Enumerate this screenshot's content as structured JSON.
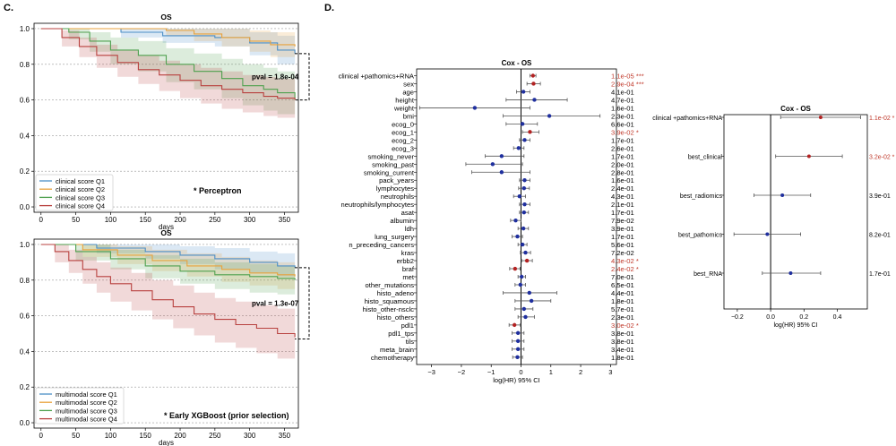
{
  "panel_labels": {
    "c": "C.",
    "d": "D."
  },
  "colors": {
    "q1": "#4b8ec6",
    "q2": "#e8a23c",
    "q3": "#4fa14f",
    "q4": "#b8413f",
    "sig": "#c0392b",
    "pt_blue": "#1f2f9e",
    "pt_red": "#b22222",
    "text_red": "#c0392b"
  },
  "chart_data": [
    {
      "id": "km_perceptron",
      "type": "line",
      "title": "OS",
      "xlabel": "days",
      "ylabel": "",
      "xlim": [
        -10,
        370
      ],
      "ylim": [
        -0.03,
        1.03
      ],
      "xticks": [
        0,
        50,
        100,
        150,
        200,
        250,
        300,
        350
      ],
      "yticks": [
        0.0,
        0.2,
        0.4,
        0.6,
        0.8,
        1.0
      ],
      "ytick_labels": [
        "0.0",
        "0.2",
        "0.4",
        "0.6",
        "0.8",
        "1.0"
      ],
      "legend": [
        "clinical score Q1",
        "clinical score Q2",
        "clinical score Q3",
        "clinical score Q4"
      ],
      "pval_label": "pval = 1.8e-04",
      "pval_bracket": [
        0.6,
        0.86
      ],
      "annotation": "* Perceptron",
      "series": [
        {
          "name": "clinical score Q1",
          "color": "#4b8ec6",
          "x": [
            0,
            60,
            115,
            175,
            250,
            300,
            340,
            365
          ],
          "y": [
            1.0,
            1.0,
            0.98,
            0.96,
            0.95,
            0.92,
            0.88,
            0.86
          ],
          "ci_lo": [
            1.0,
            1.0,
            0.95,
            0.92,
            0.9,
            0.85,
            0.8,
            0.78
          ],
          "ci_hi": [
            1.0,
            1.0,
            1.0,
            1.0,
            1.0,
            0.98,
            0.96,
            0.95
          ]
        },
        {
          "name": "clinical score Q2",
          "color": "#e8a23c",
          "x": [
            0,
            100,
            180,
            220,
            260,
            300,
            330,
            365
          ],
          "y": [
            1.0,
            1.0,
            0.99,
            0.97,
            0.95,
            0.93,
            0.91,
            0.9
          ],
          "ci_lo": [
            1.0,
            1.0,
            0.96,
            0.93,
            0.9,
            0.87,
            0.84,
            0.83
          ],
          "ci_hi": [
            1.0,
            1.0,
            1.0,
            1.0,
            1.0,
            0.99,
            0.98,
            0.97
          ]
        },
        {
          "name": "clinical score Q3",
          "color": "#4fa14f",
          "x": [
            0,
            40,
            70,
            100,
            140,
            180,
            220,
            260,
            290,
            320,
            340,
            365
          ],
          "y": [
            1.0,
            0.98,
            0.93,
            0.88,
            0.85,
            0.8,
            0.76,
            0.72,
            0.68,
            0.66,
            0.64,
            0.6
          ],
          "ci_lo": [
            1.0,
            0.94,
            0.87,
            0.8,
            0.76,
            0.7,
            0.66,
            0.61,
            0.57,
            0.54,
            0.52,
            0.48
          ],
          "ci_hi": [
            1.0,
            1.0,
            0.98,
            0.95,
            0.93,
            0.89,
            0.86,
            0.83,
            0.8,
            0.78,
            0.76,
            0.73
          ]
        },
        {
          "name": "clinical score Q4",
          "color": "#b8413f",
          "x": [
            0,
            30,
            55,
            80,
            110,
            140,
            170,
            200,
            230,
            260,
            290,
            320,
            340,
            365
          ],
          "y": [
            1.0,
            0.95,
            0.9,
            0.85,
            0.81,
            0.77,
            0.74,
            0.71,
            0.68,
            0.66,
            0.64,
            0.62,
            0.61,
            0.6
          ],
          "ci_lo": [
            1.0,
            0.9,
            0.84,
            0.78,
            0.73,
            0.69,
            0.65,
            0.61,
            0.58,
            0.55,
            0.53,
            0.51,
            0.5,
            0.48
          ],
          "ci_hi": [
            1.0,
            0.99,
            0.95,
            0.91,
            0.88,
            0.85,
            0.82,
            0.8,
            0.78,
            0.76,
            0.74,
            0.73,
            0.72,
            0.71
          ]
        }
      ]
    },
    {
      "id": "km_xgboost",
      "type": "line",
      "title": "OS",
      "xlabel": "days",
      "ylabel": "",
      "xlim": [
        -10,
        370
      ],
      "ylim": [
        -0.03,
        1.03
      ],
      "xticks": [
        0,
        50,
        100,
        150,
        200,
        250,
        300,
        350
      ],
      "yticks": [
        0.0,
        0.2,
        0.4,
        0.6,
        0.8,
        1.0
      ],
      "ytick_labels": [
        "0.0",
        "0.2",
        "0.4",
        "0.6",
        "0.8",
        "1.0"
      ],
      "legend": [
        "multimodal score Q1",
        "multimodal score Q2",
        "multimodal score Q3",
        "multimodal score Q4"
      ],
      "pval_label": "pval = 1.3e-07",
      "pval_bracket": [
        0.47,
        0.87
      ],
      "annotation": "* Early XGBoost (prior selection)",
      "series": [
        {
          "name": "multimodal score Q1",
          "color": "#4b8ec6",
          "x": [
            0,
            80,
            150,
            200,
            250,
            300,
            340,
            365
          ],
          "y": [
            1.0,
            0.98,
            0.96,
            0.94,
            0.92,
            0.9,
            0.88,
            0.87
          ],
          "ci_lo": [
            1.0,
            0.95,
            0.92,
            0.89,
            0.86,
            0.84,
            0.82,
            0.8
          ],
          "ci_hi": [
            1.0,
            1.0,
            1.0,
            0.99,
            0.98,
            0.96,
            0.95,
            0.94
          ]
        },
        {
          "name": "multimodal score Q2",
          "color": "#e8a23c",
          "x": [
            0,
            60,
            110,
            160,
            210,
            260,
            300,
            340,
            365
          ],
          "y": [
            1.0,
            0.97,
            0.94,
            0.91,
            0.88,
            0.86,
            0.84,
            0.83,
            0.82
          ],
          "ci_lo": [
            1.0,
            0.93,
            0.89,
            0.85,
            0.82,
            0.79,
            0.77,
            0.75,
            0.74
          ],
          "ci_hi": [
            1.0,
            1.0,
            0.99,
            0.97,
            0.95,
            0.93,
            0.91,
            0.9,
            0.89
          ]
        },
        {
          "name": "multimodal score Q3",
          "color": "#4fa14f",
          "x": [
            0,
            50,
            100,
            150,
            200,
            250,
            300,
            340,
            365
          ],
          "y": [
            1.0,
            0.96,
            0.92,
            0.88,
            0.85,
            0.83,
            0.82,
            0.81,
            0.8
          ],
          "ci_lo": [
            1.0,
            0.91,
            0.86,
            0.81,
            0.78,
            0.75,
            0.73,
            0.72,
            0.71
          ],
          "ci_hi": [
            1.0,
            1.0,
            0.97,
            0.94,
            0.92,
            0.9,
            0.89,
            0.88,
            0.88
          ]
        },
        {
          "name": "multimodal score Q4",
          "color": "#b8413f",
          "x": [
            0,
            20,
            40,
            60,
            80,
            100,
            130,
            160,
            190,
            220,
            250,
            280,
            310,
            340,
            365
          ],
          "y": [
            1.0,
            0.96,
            0.91,
            0.86,
            0.82,
            0.78,
            0.74,
            0.69,
            0.65,
            0.61,
            0.58,
            0.55,
            0.53,
            0.5,
            0.48
          ],
          "ci_lo": [
            1.0,
            0.9,
            0.84,
            0.78,
            0.73,
            0.68,
            0.63,
            0.58,
            0.53,
            0.49,
            0.45,
            0.42,
            0.39,
            0.36,
            0.34
          ],
          "ci_hi": [
            1.0,
            1.0,
            0.97,
            0.93,
            0.9,
            0.87,
            0.84,
            0.8,
            0.77,
            0.73,
            0.7,
            0.68,
            0.66,
            0.64,
            0.62
          ]
        }
      ]
    },
    {
      "id": "forest_features",
      "type": "forest",
      "title": "Cox - OS",
      "xlabel": "log(HR) 95% CI",
      "xlim": [
        -3.5,
        3.2
      ],
      "xticks": [
        -3,
        -2,
        -1,
        0,
        1,
        2,
        3
      ],
      "xtick_labels": [
        "−3",
        "−2",
        "−1",
        "0",
        "1",
        "2",
        "3"
      ],
      "rows": [
        {
          "label": "clinical  +pathomics+RNA",
          "hr": 0.4,
          "lo": 0.3,
          "hi": 0.5,
          "pval": "1.1e-05 ***",
          "sig": true
        },
        {
          "label": "sex",
          "hr": 0.42,
          "lo": 0.2,
          "hi": 0.65,
          "pval": "2.9e-04 ***",
          "sig": true
        },
        {
          "label": "age",
          "hr": 0.08,
          "lo": -0.15,
          "hi": 0.3,
          "pval": "4.1e-01",
          "sig": false
        },
        {
          "label": "height",
          "hr": 0.45,
          "lo": -0.5,
          "hi": 1.55,
          "pval": "4.7e-01",
          "sig": false
        },
        {
          "label": "weight",
          "hr": -1.55,
          "lo": -3.4,
          "hi": 0.3,
          "pval": "1.6e-01",
          "sig": false
        },
        {
          "label": "bmi",
          "hr": 0.95,
          "lo": -0.6,
          "hi": 2.65,
          "pval": "2.3e-01",
          "sig": false
        },
        {
          "label": "ecog_0",
          "hr": 0.05,
          "lo": -0.5,
          "hi": 0.55,
          "pval": "6.6e-01",
          "sig": false
        },
        {
          "label": "ecog_1",
          "hr": 0.3,
          "lo": 0.05,
          "hi": 0.6,
          "pval": "3.9e-02 *",
          "sig": true
        },
        {
          "label": "ecog_2",
          "hr": 0.12,
          "lo": -0.05,
          "hi": 0.3,
          "pval": "1.7e-01",
          "sig": false
        },
        {
          "label": "ecog_3",
          "hr": -0.08,
          "lo": -0.25,
          "hi": 0.1,
          "pval": "2.6e-01",
          "sig": false
        },
        {
          "label": "smoking_never",
          "hr": -0.65,
          "lo": -1.2,
          "hi": 0.1,
          "pval": "1.7e-01",
          "sig": false
        },
        {
          "label": "smoking_past",
          "hr": -0.95,
          "lo": -1.85,
          "hi": 0.05,
          "pval": "2.0e-01",
          "sig": false
        },
        {
          "label": "smoking_current",
          "hr": -0.65,
          "lo": -1.65,
          "hi": 0.3,
          "pval": "2.8e-01",
          "sig": false
        },
        {
          "label": "pack_years",
          "hr": 0.12,
          "lo": -0.05,
          "hi": 0.3,
          "pval": "1.6e-01",
          "sig": false
        },
        {
          "label": "lymphocytes",
          "hr": 0.1,
          "lo": -0.08,
          "hi": 0.28,
          "pval": "2.4e-01",
          "sig": false
        },
        {
          "label": "neutrophils",
          "hr": -0.05,
          "lo": -0.25,
          "hi": 0.15,
          "pval": "4.3e-01",
          "sig": false
        },
        {
          "label": "neutrophils/lymphocytes",
          "hr": 0.12,
          "lo": -0.05,
          "hi": 0.3,
          "pval": "2.1e-01",
          "sig": false
        },
        {
          "label": "asat",
          "hr": 0.1,
          "lo": -0.05,
          "hi": 0.25,
          "pval": "1.7e-01",
          "sig": false
        },
        {
          "label": "albumin",
          "hr": -0.18,
          "lo": -0.35,
          "hi": 0.0,
          "pval": "7.9e-02",
          "sig": false
        },
        {
          "label": "ldh",
          "hr": 0.08,
          "lo": -0.1,
          "hi": 0.25,
          "pval": "3.9e-01",
          "sig": false
        },
        {
          "label": "lung_surgery",
          "hr": -0.12,
          "lo": -0.3,
          "hi": 0.05,
          "pval": "1.7e-01",
          "sig": false
        },
        {
          "label": "n_preceding_cancers",
          "hr": 0.05,
          "lo": -0.1,
          "hi": 0.2,
          "pval": "5.6e-01",
          "sig": false
        },
        {
          "label": "kras",
          "hr": 0.15,
          "lo": -0.02,
          "hi": 0.32,
          "pval": "7.2e-02",
          "sig": false
        },
        {
          "label": "erbb2",
          "hr": 0.2,
          "lo": 0.02,
          "hi": 0.38,
          "pval": "4.3e-02 *",
          "sig": true
        },
        {
          "label": "braf",
          "hr": -0.2,
          "lo": -0.38,
          "hi": -0.03,
          "pval": "2.4e-02 *",
          "sig": true
        },
        {
          "label": "met",
          "hr": 0.02,
          "lo": -0.1,
          "hi": 0.15,
          "pval": "7.0e-01",
          "sig": false
        },
        {
          "label": "other_mutations",
          "hr": -0.02,
          "lo": -0.2,
          "hi": 0.15,
          "pval": "6.5e-01",
          "sig": false
        },
        {
          "label": "histo_adeno",
          "hr": 0.28,
          "lo": -0.6,
          "hi": 1.2,
          "pval": "4.4e-01",
          "sig": false
        },
        {
          "label": "histo_squamous",
          "hr": 0.35,
          "lo": -0.2,
          "hi": 1.0,
          "pval": "1.8e-01",
          "sig": false
        },
        {
          "label": "histo_other-nsclc",
          "hr": 0.1,
          "lo": -0.2,
          "hi": 0.4,
          "pval": "5.7e-01",
          "sig": false
        },
        {
          "label": "histo_others",
          "hr": 0.15,
          "lo": -0.1,
          "hi": 0.45,
          "pval": "2.3e-01",
          "sig": false
        },
        {
          "label": "pdl1",
          "hr": -0.22,
          "lo": -0.4,
          "hi": -0.02,
          "pval": "3.0e-02 *",
          "sig": true
        },
        {
          "label": "pdl1_tps",
          "hr": -0.1,
          "lo": -0.3,
          "hi": 0.1,
          "pval": "3.8e-01",
          "sig": false
        },
        {
          "label": "tils",
          "hr": -0.1,
          "lo": -0.3,
          "hi": 0.1,
          "pval": "3.8e-01",
          "sig": false
        },
        {
          "label": "meta_brain",
          "hr": -0.1,
          "lo": -0.3,
          "hi": 0.1,
          "pval": "3.4e-01",
          "sig": false
        },
        {
          "label": "chemotherapy",
          "hr": -0.12,
          "lo": -0.28,
          "hi": 0.05,
          "pval": "1.8e-01",
          "sig": false
        }
      ]
    },
    {
      "id": "forest_models",
      "type": "forest",
      "title": "Cox - OS",
      "xlabel": "log(HR) 95% CI",
      "xlim": [
        -0.28,
        0.58
      ],
      "xticks": [
        -0.2,
        0.0,
        0.2,
        0.4
      ],
      "xtick_labels": [
        "−0.2",
        "0.0",
        "0.2",
        "0.4"
      ],
      "rows": [
        {
          "label": "clinical  +pathomics+RNA",
          "hr": 0.3,
          "lo": 0.06,
          "hi": 0.54,
          "pval": "1.1e-02 *",
          "sig": true
        },
        {
          "label": "best_clinical",
          "hr": 0.23,
          "lo": 0.03,
          "hi": 0.43,
          "pval": "3.2e-02 *",
          "sig": true
        },
        {
          "label": "best_radiomics",
          "hr": 0.07,
          "lo": -0.1,
          "hi": 0.24,
          "pval": "3.9e-01",
          "sig": false
        },
        {
          "label": "best_pathomics",
          "hr": -0.02,
          "lo": -0.22,
          "hi": 0.18,
          "pval": "8.2e-01",
          "sig": false
        },
        {
          "label": "best_RNA",
          "hr": 0.12,
          "lo": -0.05,
          "hi": 0.3,
          "pval": "1.7e-01",
          "sig": false
        }
      ]
    }
  ]
}
